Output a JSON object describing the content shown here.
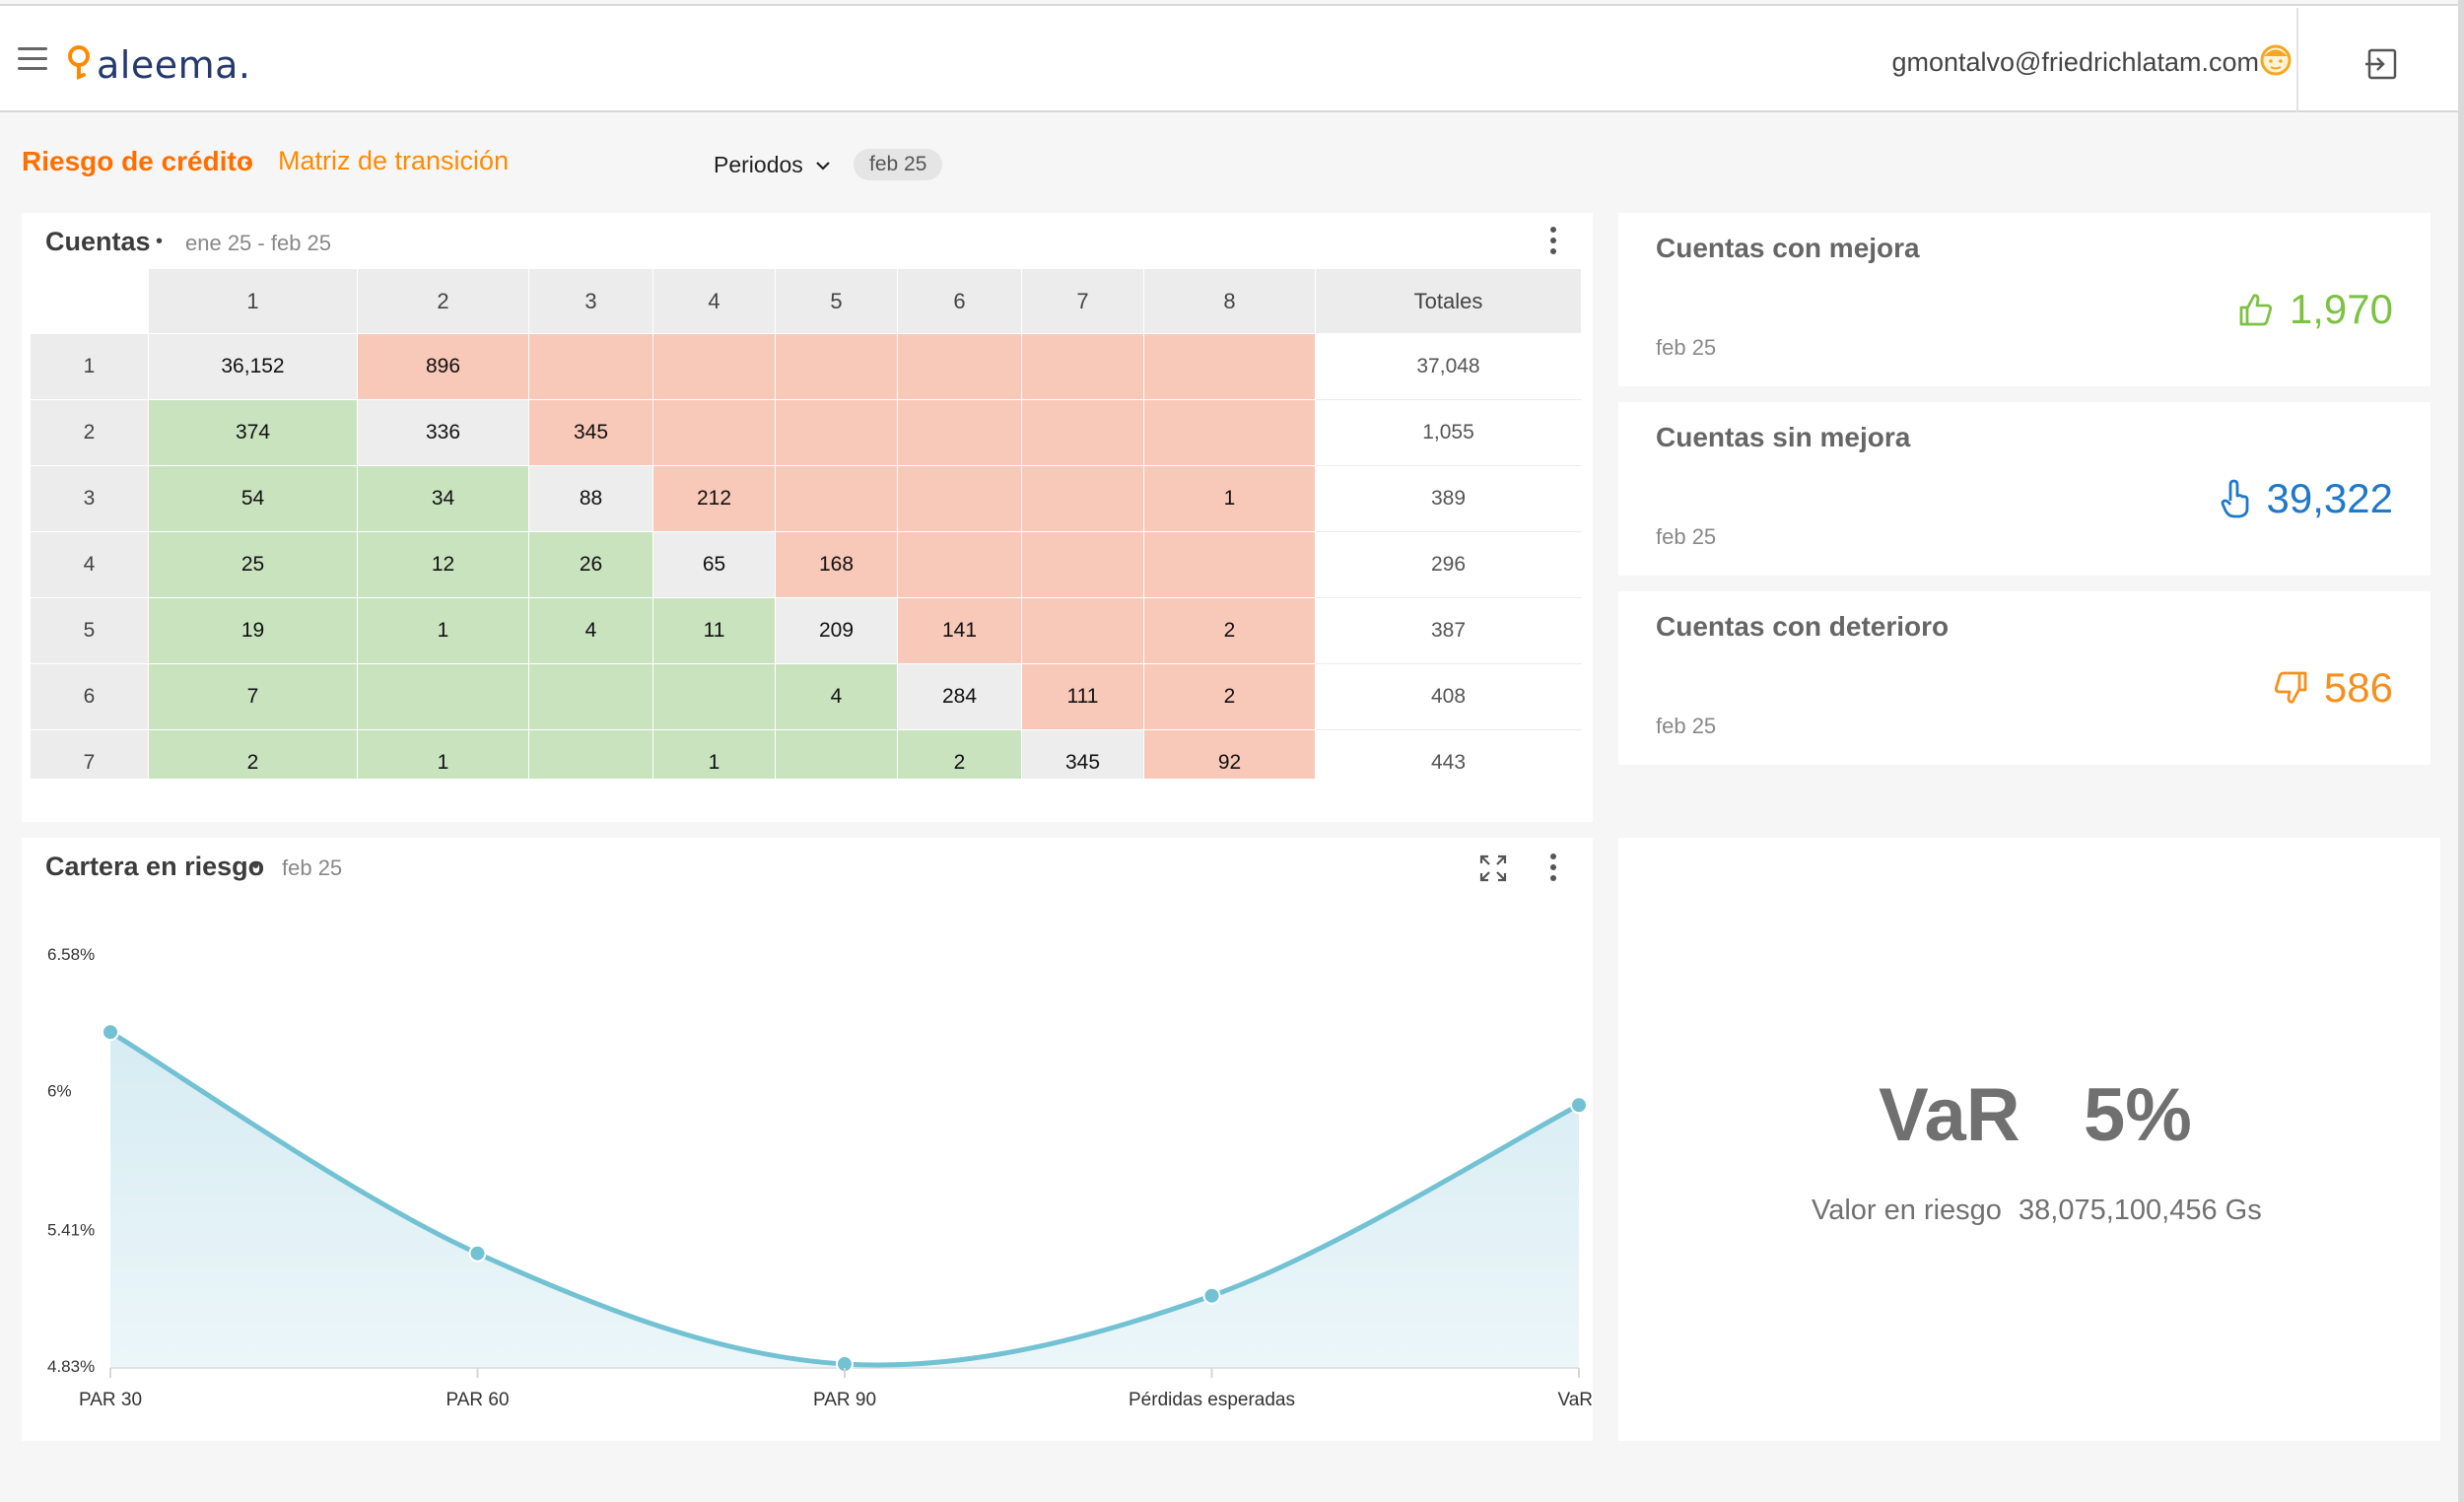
{
  "header": {
    "logo_text": "aleema.",
    "user_email": "gmontalvo@friedrichlatam.com"
  },
  "breadcrumb": {
    "section": "Riesgo de crédito",
    "separator": "·",
    "page": "Matriz de transición"
  },
  "filters": {
    "periods_label": "Periodos",
    "selected_period": "feb 25"
  },
  "accounts_card": {
    "title": "Cuentas",
    "dot": "•",
    "range": "ene 25 - feb 25",
    "columns": [
      "1",
      "2",
      "3",
      "4",
      "5",
      "6",
      "7",
      "8",
      "Totales"
    ],
    "rows": [
      {
        "label": "1",
        "cells": [
          "36,152",
          "896",
          "",
          "",
          "",
          "",
          "",
          ""
        ],
        "total": "37,048"
      },
      {
        "label": "2",
        "cells": [
          "374",
          "336",
          "345",
          "",
          "",
          "",
          "",
          ""
        ],
        "total": "1,055"
      },
      {
        "label": "3",
        "cells": [
          "54",
          "34",
          "88",
          "212",
          "",
          "",
          "",
          "1"
        ],
        "total": "389"
      },
      {
        "label": "4",
        "cells": [
          "25",
          "12",
          "26",
          "65",
          "168",
          "",
          "",
          ""
        ],
        "total": "296"
      },
      {
        "label": "5",
        "cells": [
          "19",
          "1",
          "4",
          "11",
          "209",
          "141",
          "",
          "2"
        ],
        "total": "387"
      },
      {
        "label": "6",
        "cells": [
          "7",
          "",
          "",
          "",
          "4",
          "284",
          "111",
          "2"
        ],
        "total": "408"
      },
      {
        "label": "7",
        "cells": [
          "2",
          "1",
          "",
          "1",
          "",
          "2",
          "345",
          "92"
        ],
        "total": "443"
      }
    ]
  },
  "stats": [
    {
      "title": "Cuentas con mejora",
      "date": "feb 25",
      "value": "1,970",
      "icon": "thumbs-up-icon",
      "color": "#7dc242"
    },
    {
      "title": "Cuentas sin mejora",
      "date": "feb 25",
      "value": "39,322",
      "icon": "pointing-hand-icon",
      "color": "#1f78c8"
    },
    {
      "title": "Cuentas con deterioro",
      "date": "feb 25",
      "value": "586",
      "icon": "thumbs-down-icon",
      "color": "#f5901e"
    }
  ],
  "risk_card": {
    "title": "Cartera en riesgo",
    "dot": "•",
    "date": "feb 25"
  },
  "chart_data": {
    "type": "area",
    "categories": [
      "PAR 30",
      "PAR 60",
      "PAR 90",
      "Pérdidas esperadas",
      "VaR"
    ],
    "values": [
      6.24,
      5.3,
      4.83,
      5.12,
      5.93
    ],
    "yticks": [
      "6.58%",
      "6%",
      "5.41%",
      "4.83%"
    ],
    "ytick_values": [
      6.58,
      6.0,
      5.41,
      4.83
    ],
    "ylim": [
      4.83,
      6.58
    ],
    "line_color": "#72c2d3",
    "fill_color": "#d4ebf2",
    "grid": false,
    "legend": "none"
  },
  "var_card": {
    "label": "VaR",
    "percent": "5%",
    "value_label": "Valor en riesgo",
    "value": "38,075,100,456 Gs"
  }
}
